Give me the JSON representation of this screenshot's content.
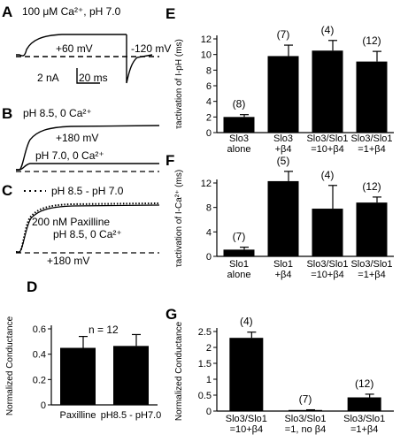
{
  "panels": {
    "A": {
      "letter": "A",
      "condition": "100 μM Ca²⁺, pH 7.0",
      "voltage": "+60 mV",
      "tail_voltage": "-120 mV",
      "scale_current": "2 nA",
      "scale_time": "20 ms"
    },
    "B": {
      "letter": "B",
      "condition": "pH 8.5, 0 Ca²⁺",
      "voltage": "+180 mV",
      "condition2": "pH 7.0, 0 Ca²⁺"
    },
    "C": {
      "letter": "C",
      "legend": "pH 8.5 - pH 7.0",
      "condition": "200 nM Paxilline",
      "condition2": "pH 8.5, 0 Ca²⁺",
      "voltage": "+180 mV"
    },
    "D": {
      "letter": "D"
    },
    "E": {
      "letter": "E"
    },
    "F": {
      "letter": "F"
    },
    "G": {
      "letter": "G"
    }
  },
  "chart_data": [
    {
      "panel": "D",
      "type": "bar",
      "ylabel": "Normalized Conductance",
      "ylim": [
        0,
        0.6
      ],
      "yticks": [
        "0",
        "0.2",
        "0.4",
        "0.6"
      ],
      "annotation": "n = 12",
      "categories": [
        "Paxilline",
        "pH8.5 - pH7.0"
      ],
      "values": [
        0.45,
        0.465
      ],
      "errors": [
        0.09,
        0.09
      ],
      "counts": [
        "",
        ""
      ]
    },
    {
      "panel": "E",
      "type": "bar",
      "ylabel": "τactivation of I-pH (ms)",
      "ylim": [
        0,
        12
      ],
      "yticks": [
        "0",
        "2",
        "4",
        "6",
        "8",
        "10",
        "12"
      ],
      "categories": [
        [
          "Slo3",
          "alone"
        ],
        [
          "Slo3",
          "+β4"
        ],
        [
          "Slo3/Slo1",
          "=10+β4"
        ],
        [
          "Slo3/Slo1",
          "=1+β4"
        ]
      ],
      "values": [
        2.0,
        9.8,
        10.5,
        9.1
      ],
      "errors": [
        0.3,
        1.4,
        1.3,
        1.3
      ],
      "counts": [
        "(8)",
        "(7)",
        "(4)",
        "(12)"
      ]
    },
    {
      "panel": "F",
      "type": "bar",
      "ylabel": "τactivation of I-Ca²⁺ (ms)",
      "ylim": [
        0,
        12
      ],
      "yticks": [
        "0",
        "4",
        "8",
        "12"
      ],
      "categories": [
        [
          "Slo1",
          "alone"
        ],
        [
          "Slo1",
          "+β4"
        ],
        [
          "Slo3/Slo1",
          "=10+β4"
        ],
        [
          "Slo3/Slo1",
          "=1+β4"
        ]
      ],
      "values": [
        1.1,
        12.3,
        7.8,
        8.8
      ],
      "errors": [
        0.4,
        1.6,
        3.8,
        0.9
      ],
      "counts": [
        "(7)",
        "(5)",
        "(4)",
        "(12)"
      ]
    },
    {
      "panel": "G",
      "type": "bar",
      "ylabel": "Normalized Conductance",
      "ylim": [
        0,
        2.5
      ],
      "yticks": [
        "0",
        "0.5",
        "1",
        "1.5",
        "2",
        "2.5"
      ],
      "categories": [
        [
          "Slo3/Slo1",
          "=10+β4"
        ],
        [
          "Slo3/Slo1",
          "=1, no β4"
        ],
        [
          "Slo3/Slo1",
          "=1+β4"
        ]
      ],
      "values": [
        2.3,
        0.02,
        0.43
      ],
      "errors": [
        0.18,
        0.02,
        0.1
      ],
      "counts": [
        "(4)",
        "(7)",
        "(12)"
      ]
    }
  ]
}
